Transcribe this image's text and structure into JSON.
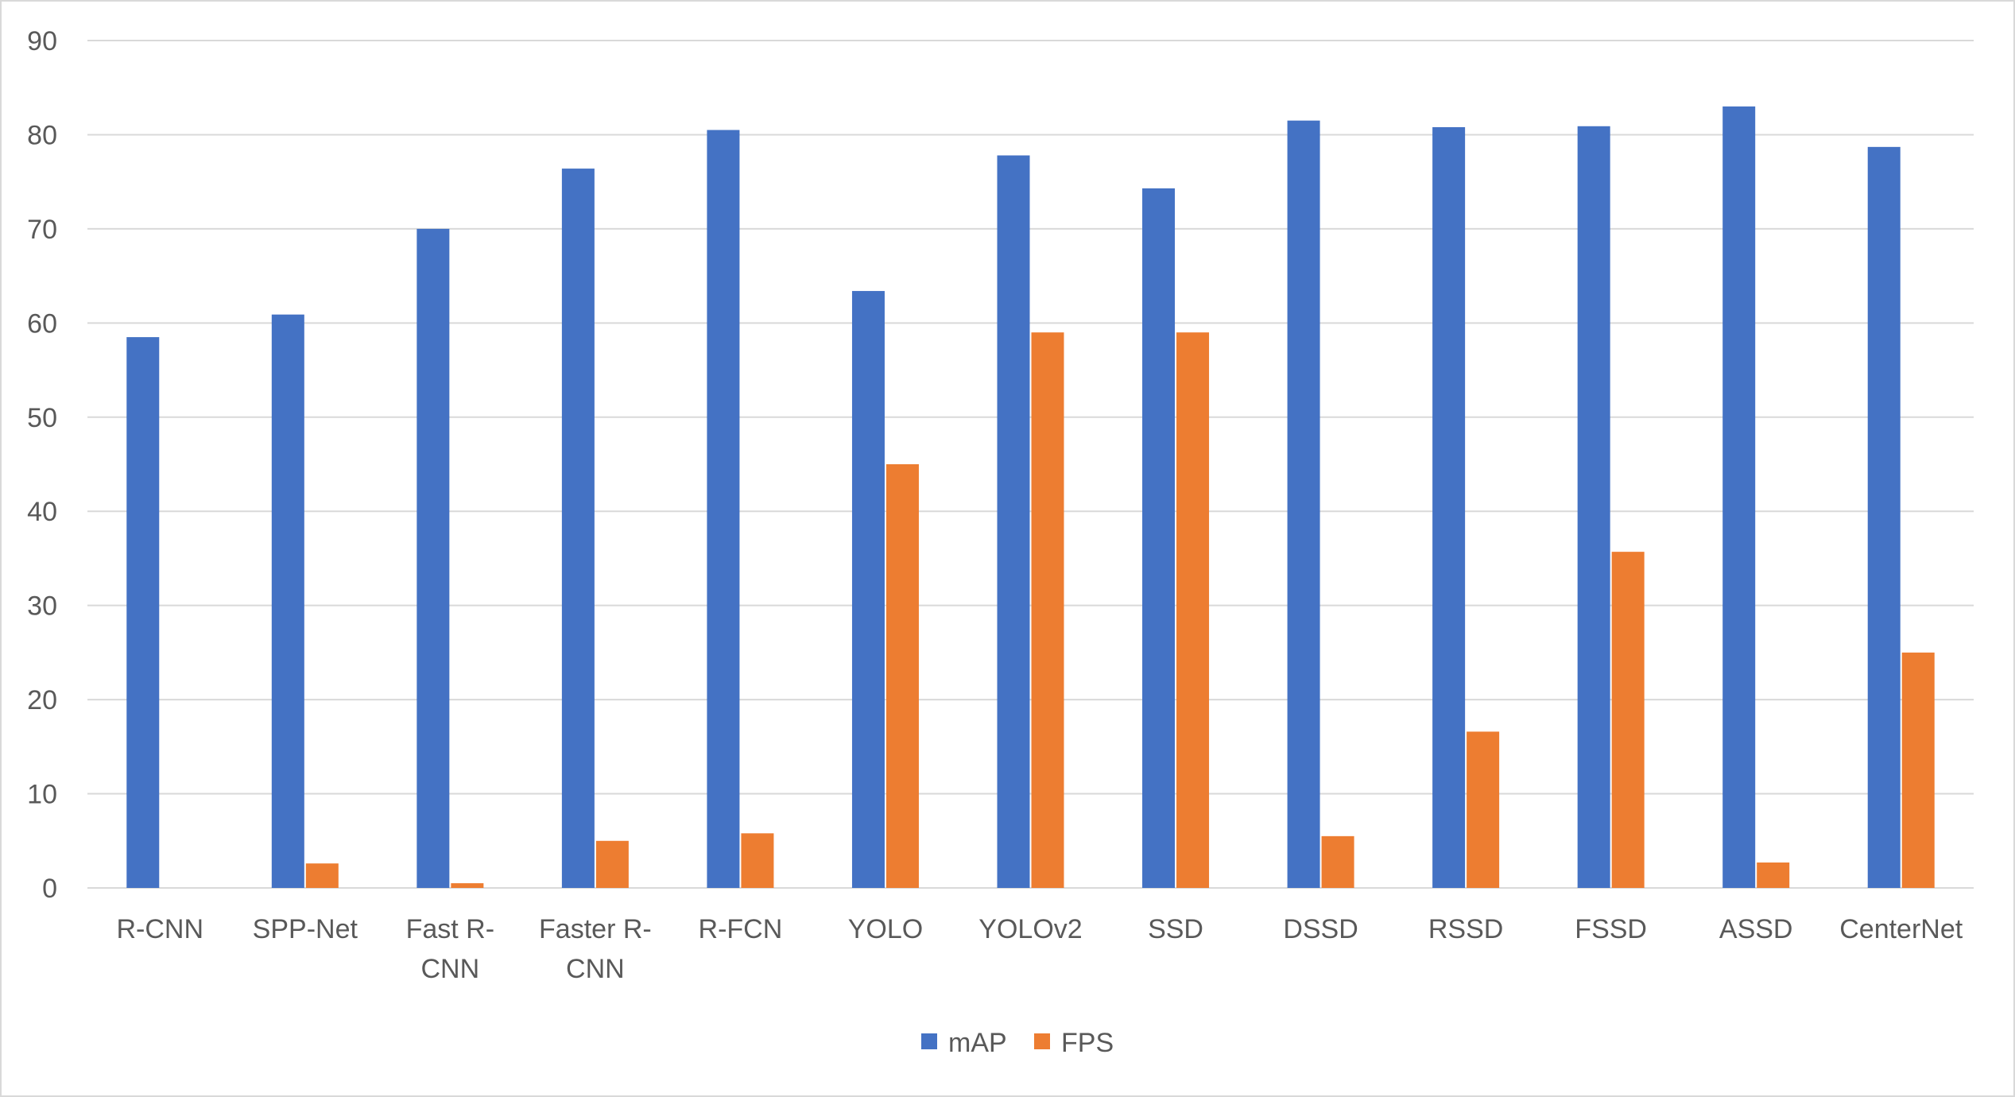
{
  "chart_data": {
    "type": "bar",
    "categories": [
      "R-CNN",
      "SPP-Net",
      "Fast R-CNN",
      "Faster R-CNN",
      "R-FCN",
      "YOLO",
      "YOLOv2",
      "SSD",
      "DSSD",
      "RSSD",
      "FSSD",
      "ASSD",
      "CenterNet"
    ],
    "category_label_lines": [
      [
        "R-CNN"
      ],
      [
        "SPP-Net"
      ],
      [
        "Fast R-",
        "CNN"
      ],
      [
        "Faster R-",
        "CNN"
      ],
      [
        "R-FCN"
      ],
      [
        "YOLO"
      ],
      [
        "YOLOv2"
      ],
      [
        "SSD"
      ],
      [
        "DSSD"
      ],
      [
        "RSSD"
      ],
      [
        "FSSD"
      ],
      [
        "ASSD"
      ],
      [
        "CenterNet"
      ]
    ],
    "series": [
      {
        "name": "mAP",
        "color": "#4472c4",
        "values": [
          58.5,
          60.9,
          70.0,
          76.4,
          80.5,
          63.4,
          77.8,
          74.3,
          81.5,
          80.8,
          80.9,
          83.0,
          78.7
        ]
      },
      {
        "name": "FPS",
        "color": "#ed7d31",
        "values": [
          0.0,
          2.6,
          0.5,
          5.0,
          5.8,
          45.0,
          59.0,
          59.0,
          5.5,
          16.6,
          35.7,
          2.7,
          25.0
        ]
      }
    ],
    "ylim": [
      0,
      90
    ],
    "yticks": [
      0,
      10,
      20,
      30,
      40,
      50,
      60,
      70,
      80,
      90
    ],
    "grid": true,
    "legend_position": "bottom",
    "title": "",
    "xlabel": "",
    "ylabel": ""
  }
}
